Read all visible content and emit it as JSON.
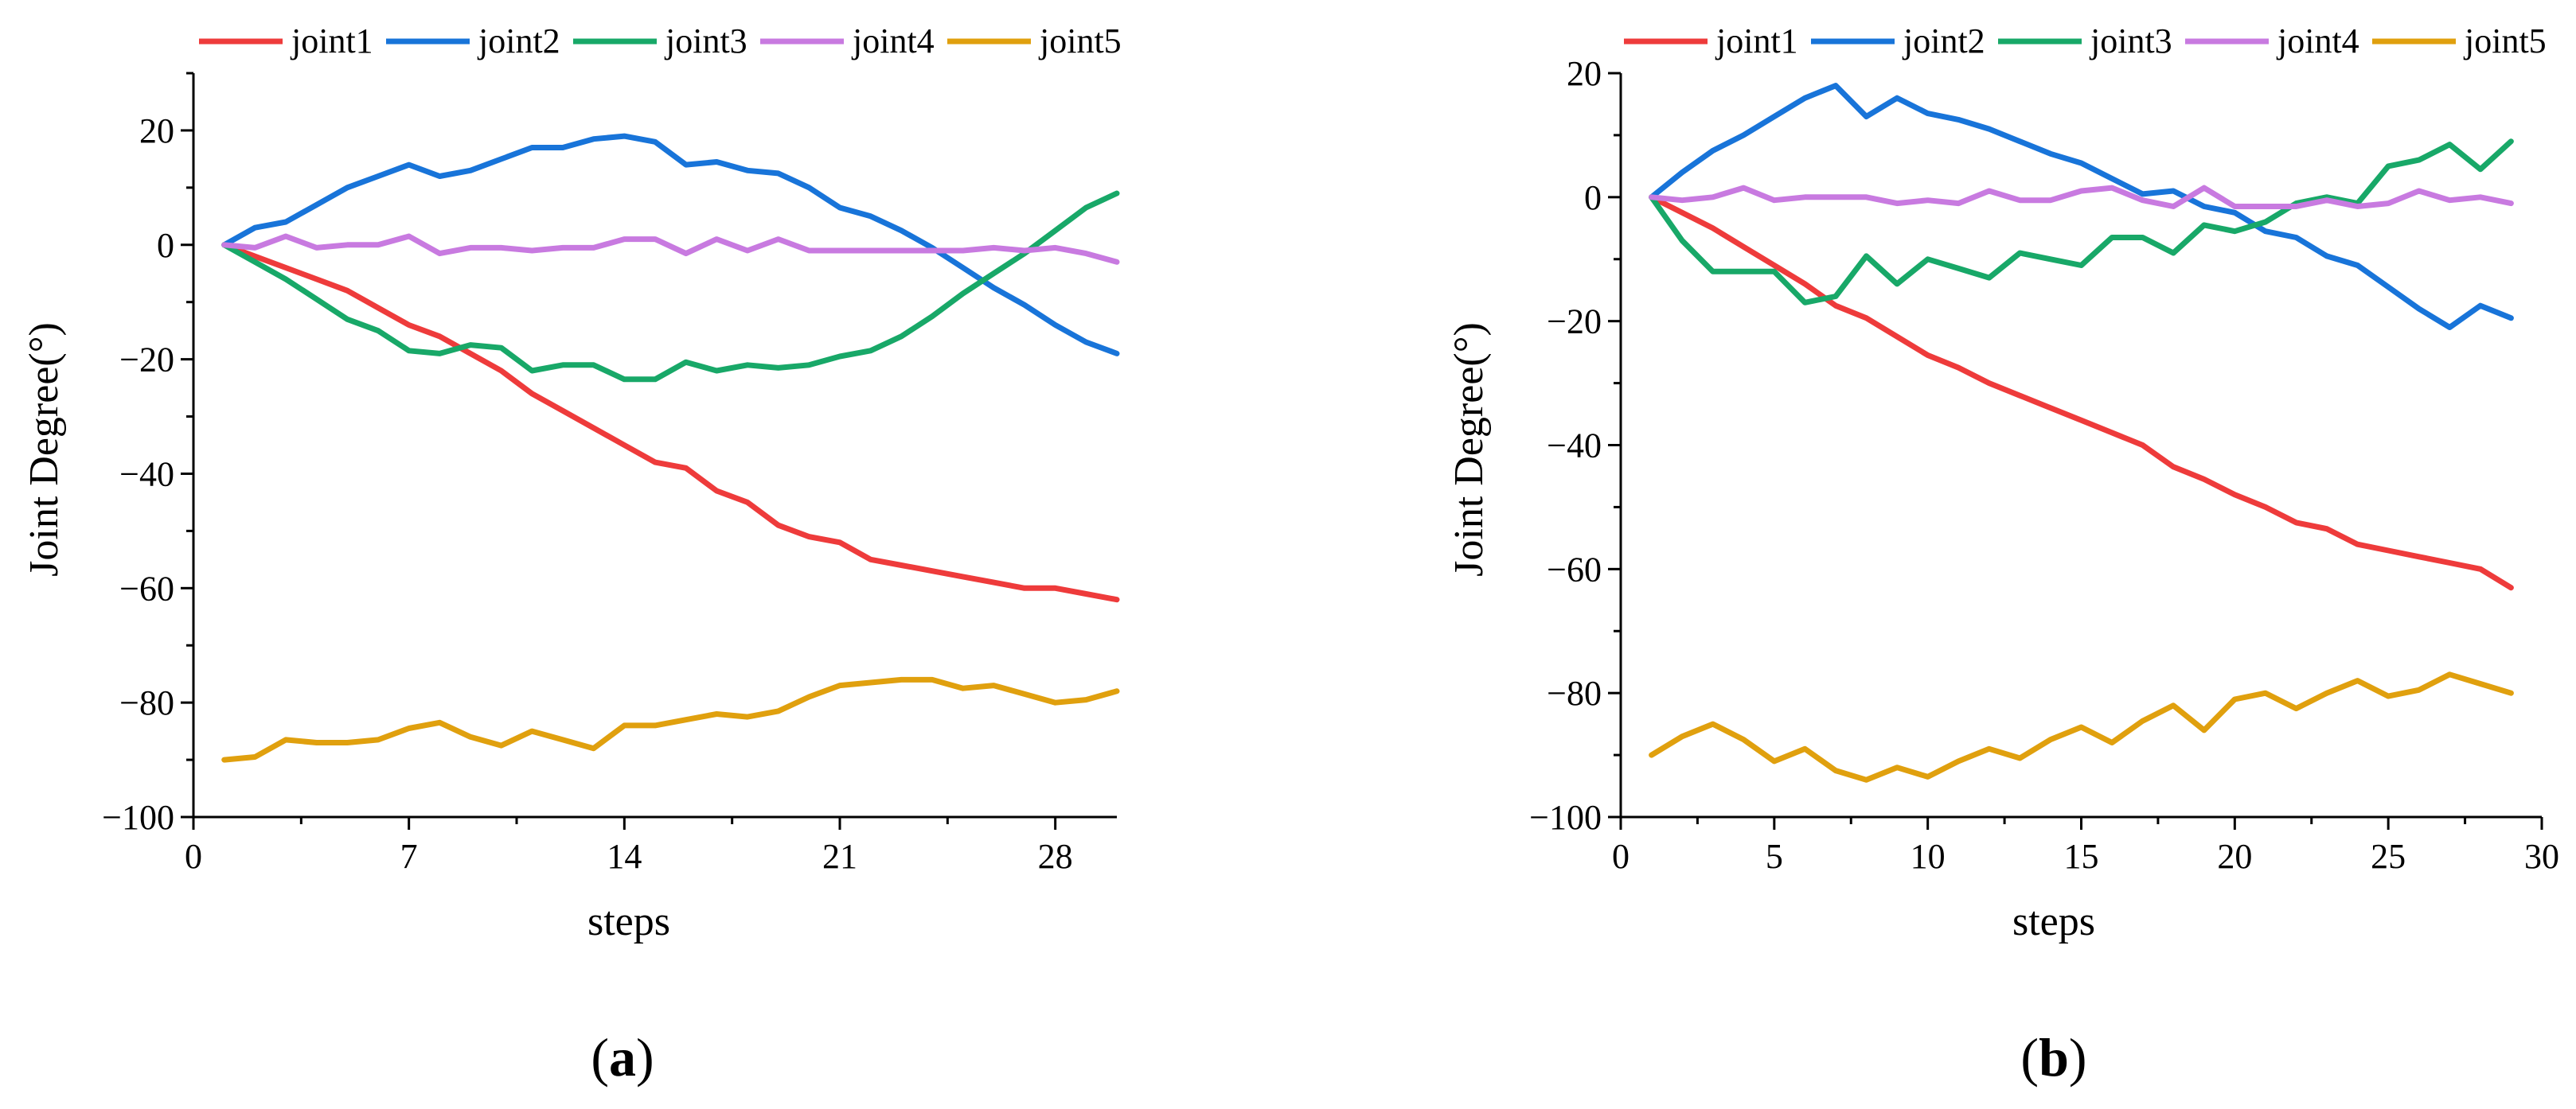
{
  "series_colors": {
    "joint1": "#ee3b3b",
    "joint2": "#1874d9",
    "joint3": "#18a868",
    "joint4": "#c87ae0",
    "joint5": "#e0a00e"
  },
  "chart_data": [
    {
      "type": "line",
      "panel_label": "a",
      "xlabel": "steps",
      "ylabel": "Joint Degree(°)",
      "xlim": [
        0,
        30
      ],
      "ylim": [
        -100,
        30
      ],
      "xticks": [
        0,
        7,
        14,
        21,
        28
      ],
      "yticks": [
        -100,
        -80,
        -60,
        -40,
        -20,
        0,
        20
      ],
      "legend_position": "top",
      "grid": false,
      "series": [
        {
          "name": "joint1",
          "x": [
            1,
            2,
            3,
            4,
            5,
            6,
            7,
            8,
            9,
            10,
            11,
            12,
            13,
            14,
            15,
            16,
            17,
            18,
            19,
            20,
            21,
            22,
            23,
            24,
            25,
            26,
            27,
            28,
            29,
            30
          ],
          "values": [
            0,
            -2,
            -4,
            -6,
            -8,
            -11,
            -14,
            -16,
            -19,
            -22,
            -26,
            -29,
            -32,
            -35,
            -38,
            -39,
            -43,
            -45,
            -49,
            -51,
            -52,
            -55,
            -56,
            -57,
            -58,
            -59,
            -60,
            -60,
            -61,
            -62
          ]
        },
        {
          "name": "joint2",
          "x": [
            1,
            2,
            3,
            4,
            5,
            6,
            7,
            8,
            9,
            10,
            11,
            12,
            13,
            14,
            15,
            16,
            17,
            18,
            19,
            20,
            21,
            22,
            23,
            24,
            25,
            26,
            27,
            28,
            29,
            30
          ],
          "values": [
            0,
            3,
            4,
            7,
            10,
            12,
            14,
            12,
            13,
            15,
            17,
            17,
            18.5,
            19,
            18,
            14,
            14.5,
            13,
            12.5,
            10,
            6.5,
            5,
            2.5,
            -0.5,
            -4,
            -7.5,
            -10.5,
            -14,
            -17,
            -19
          ]
        },
        {
          "name": "joint3",
          "x": [
            1,
            2,
            3,
            4,
            5,
            6,
            7,
            8,
            9,
            10,
            11,
            12,
            13,
            14,
            15,
            16,
            17,
            18,
            19,
            20,
            21,
            22,
            23,
            24,
            25,
            26,
            27,
            28,
            29,
            30
          ],
          "values": [
            0,
            -3,
            -6,
            -9.5,
            -13,
            -15,
            -18.5,
            -19,
            -17.5,
            -18,
            -22,
            -21,
            -21,
            -23.5,
            -23.5,
            -20.5,
            -22,
            -21,
            -21.5,
            -21,
            -19.5,
            -18.5,
            -16,
            -12.5,
            -8.5,
            -5,
            -1.5,
            2.5,
            6.5,
            9
          ]
        },
        {
          "name": "joint4",
          "x": [
            1,
            2,
            3,
            4,
            5,
            6,
            7,
            8,
            9,
            10,
            11,
            12,
            13,
            14,
            15,
            16,
            17,
            18,
            19,
            20,
            21,
            22,
            23,
            24,
            25,
            26,
            27,
            28,
            29,
            30
          ],
          "values": [
            0,
            -0.5,
            1.5,
            -0.5,
            0,
            0,
            1.5,
            -1.5,
            -0.5,
            -0.5,
            -1,
            -0.5,
            -0.5,
            1,
            1,
            -1.5,
            1,
            -1,
            1,
            -1,
            -1,
            -1,
            -1,
            -1,
            -1,
            -0.5,
            -1,
            -0.5,
            -1.5,
            -3
          ]
        },
        {
          "name": "joint5",
          "x": [
            1,
            2,
            3,
            4,
            5,
            6,
            7,
            8,
            9,
            10,
            11,
            12,
            13,
            14,
            15,
            16,
            17,
            18,
            19,
            20,
            21,
            22,
            23,
            24,
            25,
            26,
            27,
            28,
            29,
            30
          ],
          "values": [
            -90,
            -89.5,
            -86.5,
            -87,
            -87,
            -86.5,
            -84.5,
            -83.5,
            -86,
            -87.5,
            -85,
            -86.5,
            -88,
            -84,
            -84,
            -83,
            -82,
            -82.5,
            -81.5,
            -79,
            -77,
            -76.5,
            -76,
            -76,
            -77.5,
            -77,
            -78.5,
            -80,
            -79.5,
            -78
          ]
        }
      ]
    },
    {
      "type": "line",
      "panel_label": "b",
      "xlabel": "steps",
      "ylabel": "Joint Degree(°)",
      "xlim": [
        0,
        30
      ],
      "ylim": [
        -100,
        20
      ],
      "xticks": [
        0,
        5,
        10,
        15,
        20,
        25,
        30
      ],
      "yticks": [
        -100,
        -80,
        -60,
        -40,
        -20,
        0,
        20
      ],
      "legend_position": "top",
      "grid": false,
      "series": [
        {
          "name": "joint1",
          "x": [
            1,
            2,
            3,
            4,
            5,
            6,
            7,
            8,
            9,
            10,
            11,
            12,
            13,
            14,
            15,
            16,
            17,
            18,
            19,
            20,
            21,
            22,
            23,
            24,
            25,
            26,
            27,
            28,
            29
          ],
          "values": [
            0,
            -2.5,
            -5,
            -8,
            -11,
            -14,
            -17.5,
            -19.5,
            -22.5,
            -25.5,
            -27.5,
            -30,
            -32,
            -34,
            -36,
            -38,
            -40,
            -43.5,
            -45.5,
            -48,
            -50,
            -52.5,
            -53.5,
            -56,
            -57,
            -58,
            -59,
            -60,
            -63
          ]
        },
        {
          "name": "joint2",
          "x": [
            1,
            2,
            3,
            4,
            5,
            6,
            7,
            8,
            9,
            10,
            11,
            12,
            13,
            14,
            15,
            16,
            17,
            18,
            19,
            20,
            21,
            22,
            23,
            24,
            25,
            26,
            27,
            28,
            29
          ],
          "values": [
            0,
            4,
            7.5,
            10,
            13,
            16,
            18,
            13,
            16,
            13.5,
            12.5,
            11,
            9,
            7,
            5.5,
            3,
            0.5,
            1,
            -1.5,
            -2.5,
            -5.5,
            -6.5,
            -9.5,
            -11,
            -14.5,
            -18,
            -21,
            -17.5,
            -19.5
          ]
        },
        {
          "name": "joint3",
          "x": [
            1,
            2,
            3,
            4,
            5,
            6,
            7,
            8,
            9,
            10,
            11,
            12,
            13,
            14,
            15,
            16,
            17,
            18,
            19,
            20,
            21,
            22,
            23,
            24,
            25,
            26,
            27,
            28,
            29
          ],
          "values": [
            0,
            -7,
            -12,
            -12,
            -12,
            -17,
            -16,
            -9.5,
            -14,
            -10,
            -11.5,
            -13,
            -9,
            -10,
            -11,
            -6.5,
            -6.5,
            -9,
            -4.5,
            -5.5,
            -4,
            -1,
            0,
            -1,
            5,
            6,
            8.5,
            4.5,
            9
          ]
        },
        {
          "name": "joint4",
          "x": [
            1,
            2,
            3,
            4,
            5,
            6,
            7,
            8,
            9,
            10,
            11,
            12,
            13,
            14,
            15,
            16,
            17,
            18,
            19,
            20,
            21,
            22,
            23,
            24,
            25,
            26,
            27,
            28,
            29
          ],
          "values": [
            0,
            -0.5,
            0,
            1.5,
            -0.5,
            0,
            0,
            0,
            -1,
            -0.5,
            -1,
            1,
            -0.5,
            -0.5,
            1,
            1.5,
            -0.5,
            -1.5,
            1.5,
            -1.5,
            -1.5,
            -1.5,
            -0.5,
            -1.5,
            -1,
            1,
            -0.5,
            0,
            -1
          ]
        },
        {
          "name": "joint5",
          "x": [
            1,
            2,
            3,
            4,
            5,
            6,
            7,
            8,
            9,
            10,
            11,
            12,
            13,
            14,
            15,
            16,
            17,
            18,
            19,
            20,
            21,
            22,
            23,
            24,
            25,
            26,
            27,
            28,
            29
          ],
          "values": [
            -90,
            -87,
            -85,
            -87.5,
            -91,
            -89,
            -92.5,
            -94,
            -92,
            -93.5,
            -91,
            -89,
            -90.5,
            -87.5,
            -85.5,
            -88,
            -84.5,
            -82,
            -86,
            -81,
            -80,
            -82.5,
            -80,
            -78,
            -80.5,
            -79.5,
            -77,
            -78.5,
            -80
          ]
        }
      ]
    }
  ]
}
